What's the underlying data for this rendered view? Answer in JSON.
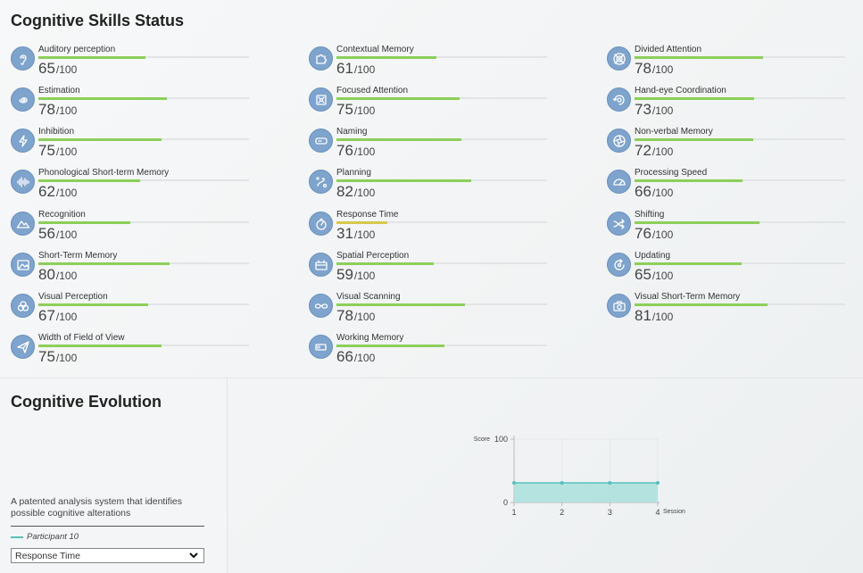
{
  "skills_title": "Cognitive Skills Status",
  "max_label": "/100",
  "skills": [
    {
      "name": "Auditory perception",
      "score": "65",
      "value": 65,
      "icon": "ear-icon"
    },
    {
      "name": "Contextual Memory",
      "score": "61",
      "value": 61,
      "icon": "puzzle-icon"
    },
    {
      "name": "Divided Attention",
      "score": "78",
      "value": 78,
      "icon": "target-icon"
    },
    {
      "name": "Estimation",
      "score": "78",
      "value": 78,
      "icon": "spiral-icon"
    },
    {
      "name": "Focused Attention",
      "score": "75",
      "value": 75,
      "icon": "focus-icon"
    },
    {
      "name": "Hand-eye Coordination",
      "score": "73",
      "value": 73,
      "icon": "eye-cycle-icon"
    },
    {
      "name": "Inhibition",
      "score": "75",
      "value": 75,
      "icon": "lightning-icon"
    },
    {
      "name": "Naming",
      "score": "76",
      "value": 76,
      "icon": "tag-icon"
    },
    {
      "name": "Non-verbal Memory",
      "score": "72",
      "value": 72,
      "icon": "aperture-icon"
    },
    {
      "name": "Phonological Short-term Memory",
      "score": "62",
      "value": 62,
      "icon": "soundwave-icon"
    },
    {
      "name": "Planning",
      "score": "82",
      "value": 82,
      "icon": "strategy-icon"
    },
    {
      "name": "Processing Speed",
      "score": "66",
      "value": 66,
      "icon": "speedometer-icon"
    },
    {
      "name": "Recognition",
      "score": "56",
      "value": 56,
      "icon": "mountain-icon"
    },
    {
      "name": "Response Time",
      "score": "31",
      "value": 31,
      "icon": "stopwatch-icon"
    },
    {
      "name": "Shifting",
      "score": "76",
      "value": 76,
      "icon": "shuffle-icon"
    },
    {
      "name": "Short-Term Memory",
      "score": "80",
      "value": 80,
      "icon": "picture-icon"
    },
    {
      "name": "Spatial Perception",
      "score": "59",
      "value": 59,
      "icon": "cube-icon"
    },
    {
      "name": "Updating",
      "score": "65",
      "value": 65,
      "icon": "refresh-icon"
    },
    {
      "name": "Visual Perception",
      "score": "67",
      "value": 67,
      "icon": "color-wheel-icon"
    },
    {
      "name": "Visual Scanning",
      "score": "78",
      "value": 78,
      "icon": "glasses-icon"
    },
    {
      "name": "Visual Short-Term Memory",
      "score": "81",
      "value": 81,
      "icon": "camera-icon"
    },
    {
      "name": "Width of Field of View",
      "score": "75",
      "value": 75,
      "icon": "paper-plane-icon"
    },
    {
      "name": "Working Memory",
      "score": "66",
      "value": 66,
      "icon": "battery-icon"
    }
  ],
  "evolution": {
    "title": "Cognitive Evolution",
    "description": "A patented analysis system that identifies possible cognitive alterations",
    "legend_label": "Participant 10",
    "select_value": "Response Time"
  },
  "colors": {
    "accent_green": "#8ccf5b",
    "accent_yellow": "#d8c84a",
    "icon_blue": "#7ea3cc",
    "series_teal": "#5bbfb8"
  },
  "chart_data": {
    "type": "area",
    "xlabel": "Session",
    "ylabel": "Score",
    "x": [
      1,
      2,
      3,
      4
    ],
    "x_tick_labels": [
      "1",
      "2",
      "3",
      "4"
    ],
    "y_tick_labels": [
      "0",
      "100"
    ],
    "ylim": [
      0,
      100
    ],
    "xlim": [
      1,
      4
    ],
    "grid": true,
    "series": [
      {
        "name": "Participant 10",
        "values": [
          31,
          31,
          31,
          31
        ]
      }
    ]
  }
}
